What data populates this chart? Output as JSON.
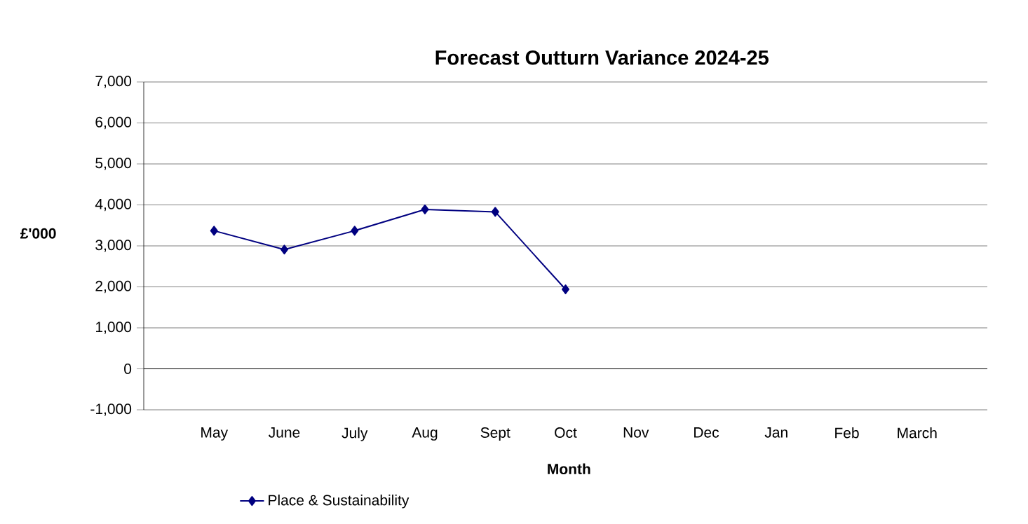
{
  "chart_data": {
    "type": "line",
    "title": "Forecast Outturn Variance 2024-25",
    "xlabel": "Month",
    "ylabel": "£'000",
    "categories": [
      "May",
      "June",
      "July",
      "Aug",
      "Sept",
      "Oct",
      "Nov",
      "Dec",
      "Jan",
      "Feb",
      "March"
    ],
    "series": [
      {
        "name": "Place & Sustainability",
        "color": "#000080",
        "values": [
          3370,
          2910,
          3370,
          3890,
          3830,
          1940,
          null,
          null,
          null,
          null,
          null
        ]
      }
    ],
    "ylim": [
      -1000,
      7000
    ],
    "yticks": [
      {
        "value": -1000,
        "label": "-1,000"
      },
      0,
      {
        "value": 1000,
        "label": "1,000"
      },
      {
        "value": 2000,
        "label": "2,000"
      },
      {
        "value": 3000,
        "label": "3,000"
      },
      {
        "value": 4000,
        "label": "4,000"
      },
      {
        "value": 5000,
        "label": "5,000"
      },
      {
        "value": 6000,
        "label": "6,000"
      },
      {
        "value": 7000,
        "label": "7,000"
      }
    ],
    "grid": "y",
    "legend": "bottom left",
    "marker": "diamond",
    "line_style": "solid"
  }
}
